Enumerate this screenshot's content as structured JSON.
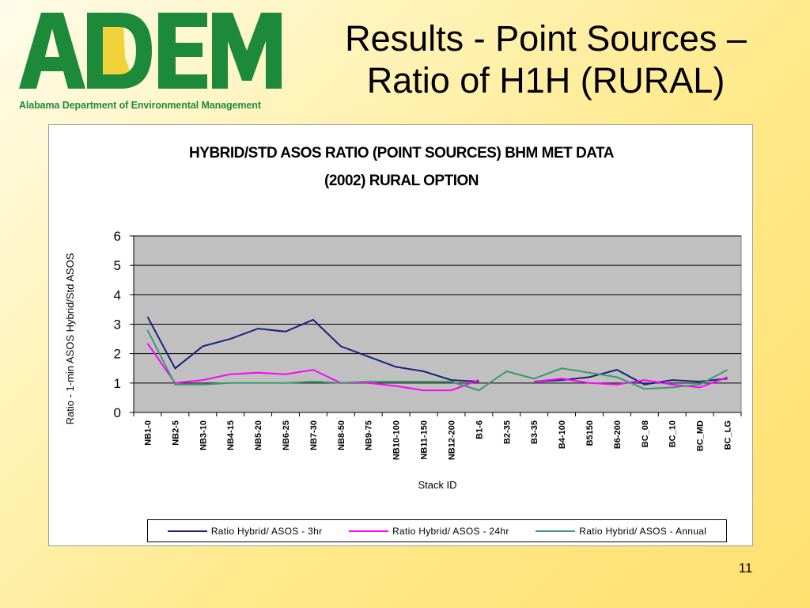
{
  "logo": {
    "letters": "ADEM",
    "subtitle": "Alabama Department of Environmental Management"
  },
  "slide": {
    "title_line1": "Results - Point Sources –",
    "title_line2": "Ratio of H1H (RURAL)",
    "page_number": "11"
  },
  "colors": {
    "logo_green": "#1c8a3a",
    "logo_gold": "#f2d23a",
    "plot_bg": "#c0c0c0",
    "series_3hr": "#1a1f80",
    "series_24hr": "#ff00ff",
    "series_annual": "#3a9a6a"
  },
  "chart_data": {
    "type": "line",
    "title_line1": "HYBRID/STD ASOS RATIO (POINT SOURCES) BHM MET DATA",
    "title_line2": "(2002) RURAL OPTION",
    "xlabel": "Stack ID",
    "ylabel": "Ratio - 1-min ASOS Hybrid/Std ASOS",
    "ylim": [
      0,
      6
    ],
    "yticks": [
      0,
      1,
      2,
      3,
      4,
      5,
      6
    ],
    "grid": true,
    "legend_position": "bottom",
    "categories": [
      "NB1-0",
      "NB2-5",
      "NB3-10",
      "NB4-15",
      "NB5-20",
      "NB6-25",
      "NB7-30",
      "NB8-50",
      "NB9-75",
      "NB10-100",
      "NB11-150",
      "NB12-200",
      "B1-6",
      "B2-35",
      "B3-35",
      "B4-100",
      "B5150",
      "B6-200",
      "BC_08",
      "BC_10",
      "BC_MD",
      "BC_LG"
    ],
    "series": [
      {
        "name": "Ratio Hybrid/ ASOS - 3hr",
        "values": [
          3.25,
          1.5,
          2.25,
          2.5,
          2.85,
          2.75,
          3.15,
          2.25,
          1.9,
          1.55,
          1.4,
          1.1,
          1.05,
          null,
          1.05,
          1.1,
          1.2,
          1.45,
          0.95,
          1.1,
          1.05,
          1.15
        ]
      },
      {
        "name": "Ratio Hybrid/ ASOS - 24hr",
        "values": [
          2.35,
          1.0,
          1.1,
          1.3,
          1.35,
          1.3,
          1.45,
          1.0,
          1.0,
          0.9,
          0.75,
          0.75,
          1.1,
          null,
          1.05,
          1.15,
          1.0,
          0.95,
          1.1,
          0.95,
          0.85,
          1.2
        ]
      },
      {
        "name": "Ratio Hybrid/ ASOS - Annual",
        "values": [
          2.8,
          0.95,
          0.95,
          1.0,
          1.0,
          1.0,
          1.05,
          1.0,
          1.05,
          1.05,
          1.05,
          1.05,
          0.75,
          1.4,
          1.15,
          1.5,
          1.35,
          1.2,
          0.8,
          0.85,
          0.95,
          1.45
        ]
      }
    ]
  }
}
